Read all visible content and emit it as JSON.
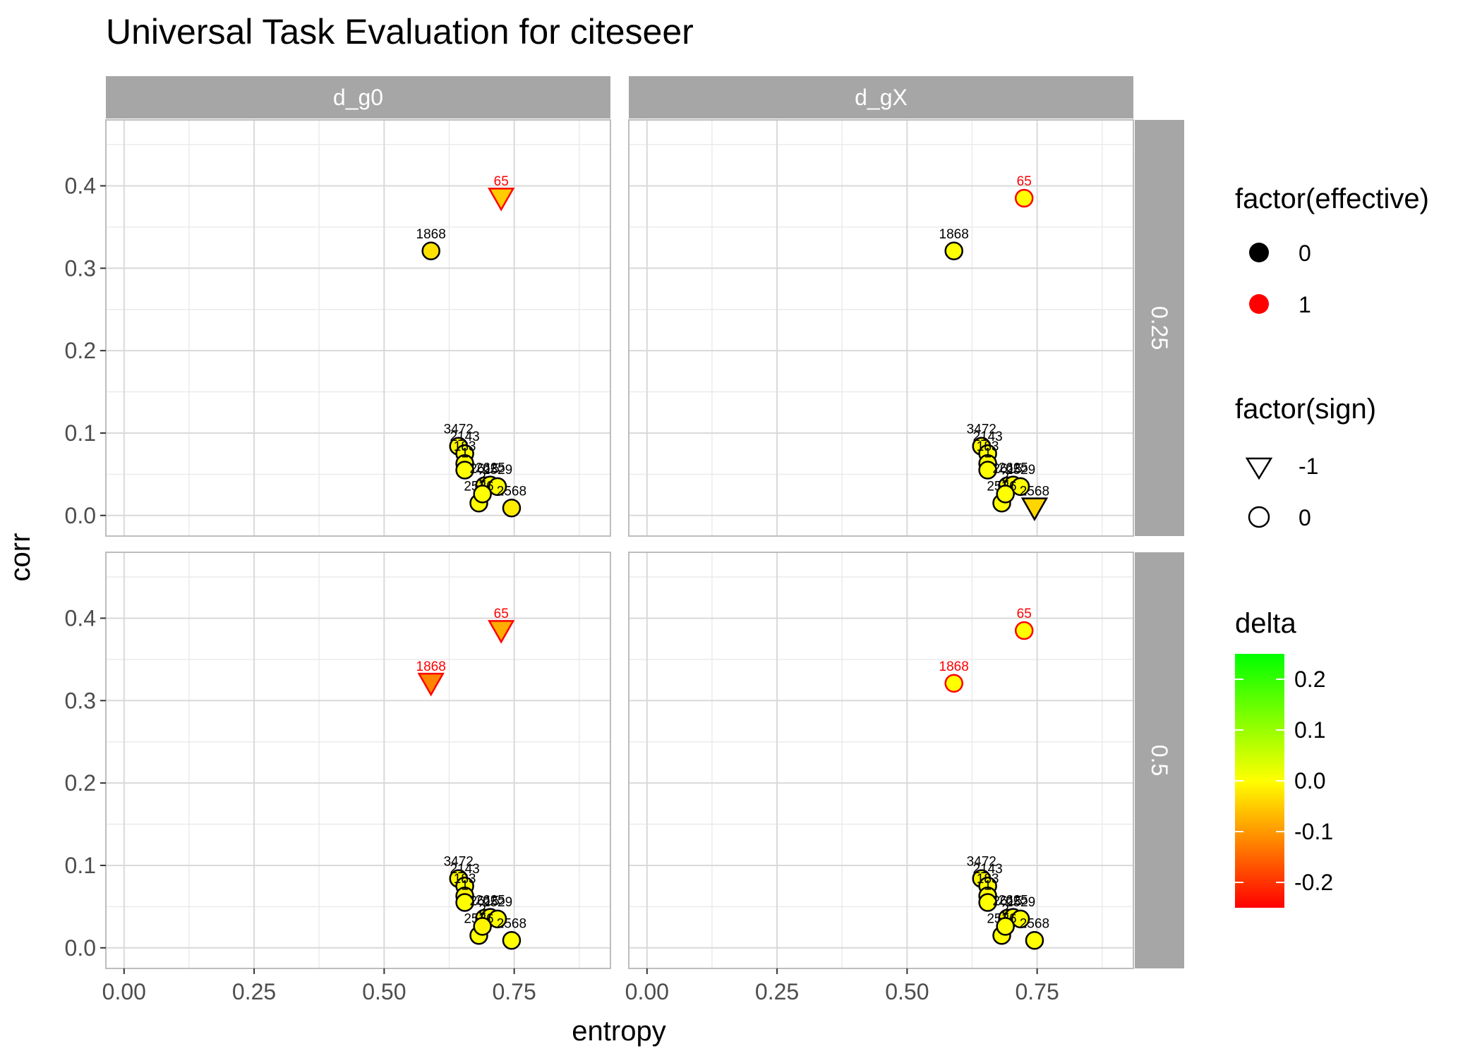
{
  "chart_data": {
    "type": "scatter",
    "title": "Universal Task Evaluation for citeseer",
    "xlabel": "entropy",
    "ylabel": "corr",
    "xlim": [
      -0.035,
      0.935
    ],
    "ylim": [
      -0.025,
      0.48
    ],
    "x_ticks": [
      "0.00",
      "0.25",
      "0.50",
      "0.75"
    ],
    "y_ticks": [
      "0.0",
      "0.1",
      "0.2",
      "0.3",
      "0.4"
    ],
    "facet_cols": [
      "d_g0",
      "d_gX"
    ],
    "facet_rows": [
      "0.25",
      "0.5"
    ],
    "legends": {
      "effective": {
        "title": "factor(effective)",
        "items": [
          {
            "label": "0",
            "color": "#000000"
          },
          {
            "label": "1",
            "color": "#ff0000"
          }
        ]
      },
      "sign": {
        "title": "factor(sign)",
        "items": [
          {
            "label": "-1",
            "shape": "triangle-down"
          },
          {
            "label": "0",
            "shape": "circle"
          }
        ]
      },
      "delta": {
        "title": "delta",
        "ticks": [
          "0.2",
          "0.1",
          "0.0",
          "-0.1",
          "-0.2"
        ],
        "range": [
          -0.25,
          0.25
        ],
        "colors": [
          "#ff0000",
          "#ffff00",
          "#00ff00"
        ]
      }
    },
    "panels": [
      {
        "col": "d_g0",
        "row": "0.25",
        "points": [
          {
            "label": "65",
            "x": 0.725,
            "y": 0.385,
            "effective": 1,
            "sign": -1,
            "delta": -0.05
          },
          {
            "label": "1868",
            "x": 0.59,
            "y": 0.321,
            "effective": 0,
            "sign": 0,
            "delta": -0.03
          },
          {
            "label": "3472",
            "x": 0.643,
            "y": 0.084,
            "effective": 0,
            "sign": 0,
            "delta": -0.01
          },
          {
            "label": "2143",
            "x": 0.655,
            "y": 0.075,
            "effective": 0,
            "sign": 0,
            "delta": 0.0
          },
          {
            "label": "183",
            "x": 0.655,
            "y": 0.063,
            "effective": 0,
            "sign": 0,
            "delta": 0.0
          },
          {
            "label": "1",
            "x": 0.655,
            "y": 0.055,
            "effective": 0,
            "sign": 0,
            "delta": 0.0
          },
          {
            "label": "2615",
            "x": 0.693,
            "y": 0.036,
            "effective": 0,
            "sign": 0,
            "delta": 0.0
          },
          {
            "label": "2625",
            "x": 0.704,
            "y": 0.037,
            "effective": 0,
            "sign": 0,
            "delta": 0.0
          },
          {
            "label": "2529",
            "x": 0.718,
            "y": 0.035,
            "effective": 0,
            "sign": 0,
            "delta": 0.0
          },
          {
            "label": "2536",
            "x": 0.682,
            "y": 0.015,
            "effective": 0,
            "sign": 0,
            "delta": 0.0
          },
          {
            "label": "2",
            "x": 0.689,
            "y": 0.026,
            "effective": 0,
            "sign": 0,
            "delta": 0.0
          },
          {
            "label": "2568",
            "x": 0.745,
            "y": 0.009,
            "effective": 0,
            "sign": 0,
            "delta": -0.02
          }
        ]
      },
      {
        "col": "d_gX",
        "row": "0.25",
        "points": [
          {
            "label": "65",
            "x": 0.725,
            "y": 0.385,
            "effective": 1,
            "sign": 0,
            "delta": 0.0
          },
          {
            "label": "1868",
            "x": 0.59,
            "y": 0.321,
            "effective": 0,
            "sign": 0,
            "delta": 0.0
          },
          {
            "label": "3472",
            "x": 0.643,
            "y": 0.084,
            "effective": 0,
            "sign": 0,
            "delta": -0.01
          },
          {
            "label": "2143",
            "x": 0.655,
            "y": 0.075,
            "effective": 0,
            "sign": 0,
            "delta": 0.0
          },
          {
            "label": "183",
            "x": 0.655,
            "y": 0.063,
            "effective": 0,
            "sign": 0,
            "delta": 0.0
          },
          {
            "label": "1",
            "x": 0.655,
            "y": 0.055,
            "effective": 0,
            "sign": 0,
            "delta": 0.0
          },
          {
            "label": "2615",
            "x": 0.693,
            "y": 0.036,
            "effective": 0,
            "sign": 0,
            "delta": 0.0
          },
          {
            "label": "2625",
            "x": 0.704,
            "y": 0.037,
            "effective": 0,
            "sign": 0,
            "delta": 0.0
          },
          {
            "label": "2529",
            "x": 0.718,
            "y": 0.035,
            "effective": 0,
            "sign": 0,
            "delta": 0.0
          },
          {
            "label": "2536",
            "x": 0.682,
            "y": 0.015,
            "effective": 0,
            "sign": 0,
            "delta": 0.0
          },
          {
            "label": "2",
            "x": 0.689,
            "y": 0.026,
            "effective": 0,
            "sign": 0,
            "delta": 0.0
          },
          {
            "label": "2568",
            "x": 0.745,
            "y": 0.009,
            "effective": 0,
            "sign": -1,
            "delta": -0.04
          }
        ]
      },
      {
        "col": "d_g0",
        "row": "0.5",
        "points": [
          {
            "label": "65",
            "x": 0.725,
            "y": 0.385,
            "effective": 1,
            "sign": -1,
            "delta": -0.08
          },
          {
            "label": "1868",
            "x": 0.59,
            "y": 0.321,
            "effective": 1,
            "sign": -1,
            "delta": -0.12
          },
          {
            "label": "3472",
            "x": 0.643,
            "y": 0.084,
            "effective": 0,
            "sign": 0,
            "delta": -0.01
          },
          {
            "label": "2143",
            "x": 0.655,
            "y": 0.075,
            "effective": 0,
            "sign": 0,
            "delta": 0.0
          },
          {
            "label": "183",
            "x": 0.655,
            "y": 0.063,
            "effective": 0,
            "sign": 0,
            "delta": -0.01
          },
          {
            "label": "1",
            "x": 0.655,
            "y": 0.055,
            "effective": 0,
            "sign": 0,
            "delta": 0.0
          },
          {
            "label": "2615",
            "x": 0.693,
            "y": 0.036,
            "effective": 0,
            "sign": 0,
            "delta": 0.0
          },
          {
            "label": "2625",
            "x": 0.704,
            "y": 0.037,
            "effective": 0,
            "sign": 0,
            "delta": 0.0
          },
          {
            "label": "2529",
            "x": 0.718,
            "y": 0.035,
            "effective": 0,
            "sign": 0,
            "delta": 0.0
          },
          {
            "label": "2536",
            "x": 0.682,
            "y": 0.015,
            "effective": 0,
            "sign": 0,
            "delta": 0.0
          },
          {
            "label": "2",
            "x": 0.689,
            "y": 0.026,
            "effective": 0,
            "sign": 0,
            "delta": -0.01
          },
          {
            "label": "2568",
            "x": 0.745,
            "y": 0.009,
            "effective": 0,
            "sign": 0,
            "delta": 0.0
          }
        ]
      },
      {
        "col": "d_gX",
        "row": "0.5",
        "points": [
          {
            "label": "65",
            "x": 0.725,
            "y": 0.385,
            "effective": 1,
            "sign": 0,
            "delta": 0.0
          },
          {
            "label": "1868",
            "x": 0.59,
            "y": 0.321,
            "effective": 1,
            "sign": 0,
            "delta": 0.0
          },
          {
            "label": "3472",
            "x": 0.643,
            "y": 0.084,
            "effective": 0,
            "sign": 0,
            "delta": -0.01
          },
          {
            "label": "2143",
            "x": 0.655,
            "y": 0.075,
            "effective": 0,
            "sign": 0,
            "delta": 0.0
          },
          {
            "label": "183",
            "x": 0.655,
            "y": 0.063,
            "effective": 0,
            "sign": 0,
            "delta": 0.0
          },
          {
            "label": "1",
            "x": 0.655,
            "y": 0.055,
            "effective": 0,
            "sign": 0,
            "delta": 0.0
          },
          {
            "label": "2615",
            "x": 0.693,
            "y": 0.036,
            "effective": 0,
            "sign": 0,
            "delta": 0.0
          },
          {
            "label": "2625",
            "x": 0.704,
            "y": 0.037,
            "effective": 0,
            "sign": 0,
            "delta": 0.0
          },
          {
            "label": "2529",
            "x": 0.718,
            "y": 0.035,
            "effective": 0,
            "sign": 0,
            "delta": 0.0
          },
          {
            "label": "2536",
            "x": 0.682,
            "y": 0.015,
            "effective": 0,
            "sign": 0,
            "delta": 0.0
          },
          {
            "label": "2",
            "x": 0.689,
            "y": 0.026,
            "effective": 0,
            "sign": 0,
            "delta": 0.0
          },
          {
            "label": "2568",
            "x": 0.745,
            "y": 0.009,
            "effective": 0,
            "sign": 0,
            "delta": 0.0
          }
        ]
      }
    ]
  }
}
